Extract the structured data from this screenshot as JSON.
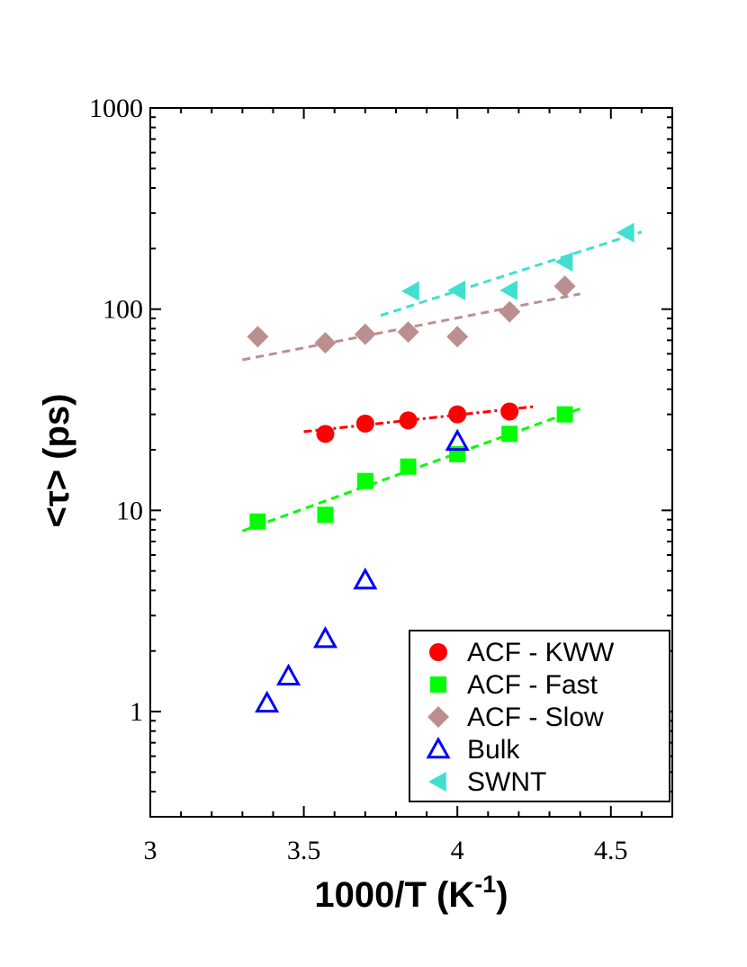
{
  "chart_data": {
    "type": "scatter",
    "title": "",
    "xlabel": "1000/T (K",
    "xlabel_sup": "-1",
    "xlabel_end": ")",
    "ylabel": "<τ>  (ps)",
    "xlim": [
      3.0,
      4.7
    ],
    "ylim": [
      0.3,
      1000
    ],
    "yscale": "log",
    "x_ticks": [
      3,
      3.5,
      4,
      4.5
    ],
    "x_tick_labels": [
      "3",
      "3.5",
      "4",
      "4.5"
    ],
    "y_ticks": [
      1,
      10,
      100,
      1000
    ],
    "y_tick_labels": [
      "1",
      "10",
      "100",
      "1000"
    ],
    "legend_position": "bottom-right",
    "series": [
      {
        "name": "ACF - KWW",
        "marker": "circle",
        "filled": true,
        "color": "#ff0000",
        "x": [
          3.57,
          3.7,
          3.84,
          4.0,
          4.17
        ],
        "y": [
          24,
          27,
          28,
          30,
          31
        ],
        "fit": {
          "x": [
            3.5,
            4.25
          ],
          "y": [
            24.6,
            32.8
          ],
          "dash": "dotdash"
        }
      },
      {
        "name": "ACF - Fast",
        "marker": "square",
        "filled": true,
        "color": "#00ff00",
        "x": [
          3.35,
          3.57,
          3.7,
          3.84,
          4.0,
          4.17,
          4.35
        ],
        "y": [
          8.8,
          9.5,
          14,
          16.5,
          19,
          24,
          30
        ],
        "fit": {
          "x": [
            3.3,
            4.4
          ],
          "y": [
            7.9,
            32
          ],
          "dash": "dash"
        }
      },
      {
        "name": "ACF - Slow",
        "marker": "diamond",
        "filled": true,
        "color": "#bc8f8f",
        "x": [
          3.35,
          3.57,
          3.7,
          3.84,
          4.0,
          4.17,
          4.35
        ],
        "y": [
          73,
          68,
          75,
          77,
          73,
          97,
          130
        ],
        "fit": {
          "x": [
            3.3,
            4.4
          ],
          "y": [
            56,
            119
          ],
          "dash": "dash"
        }
      },
      {
        "name": "Bulk",
        "marker": "triangle-up",
        "filled": false,
        "color": "#0000ff",
        "x": [
          3.38,
          3.45,
          3.57,
          3.7,
          4.0
        ],
        "y": [
          1.1,
          1.5,
          2.3,
          4.5,
          22
        ],
        "fit": null
      },
      {
        "name": "SWNT",
        "marker": "triangle-left",
        "filled": true,
        "color": "#40e0d0",
        "x": [
          3.85,
          4.0,
          4.17,
          4.35,
          4.55
        ],
        "y": [
          123,
          124,
          124,
          172,
          240
        ],
        "fit": {
          "x": [
            3.75,
            4.6
          ],
          "y": [
            93,
            242
          ],
          "dash": "dash"
        }
      }
    ]
  }
}
